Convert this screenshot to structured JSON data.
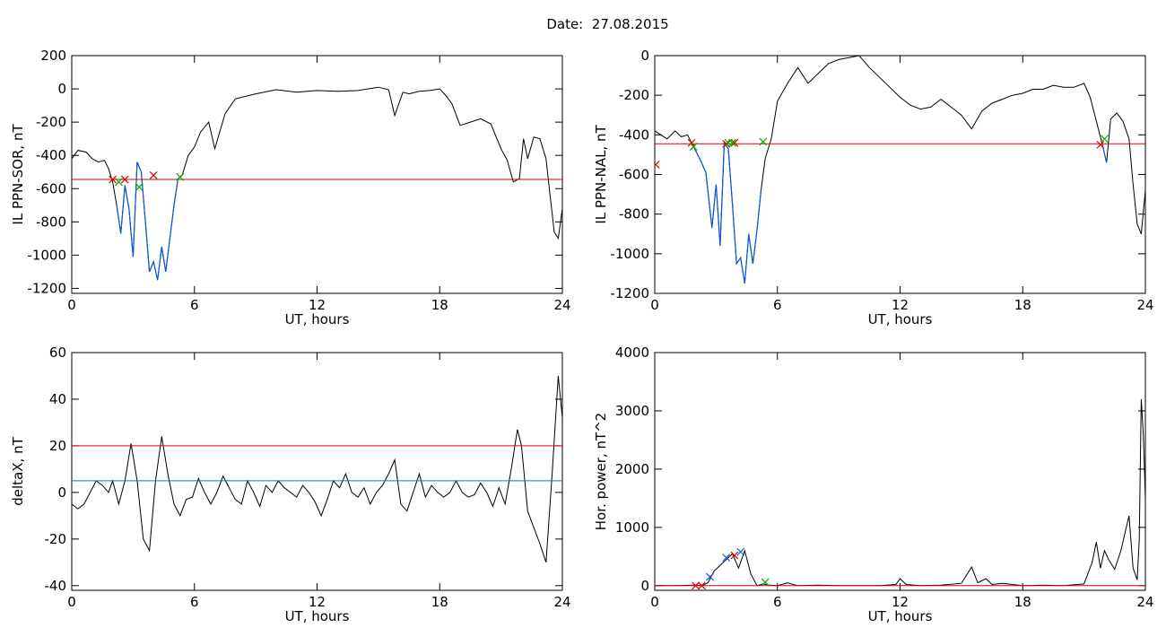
{
  "page": {
    "title": "Date:  27.08.2015"
  },
  "chart_data": [
    {
      "id": "sor",
      "type": "line",
      "xlabel": "UT, hours",
      "ylabel": "IL PPN-SOR, nT",
      "xlim": [
        0,
        24
      ],
      "ylim": [
        -1230,
        200
      ],
      "xticks": [
        0,
        6,
        12,
        18,
        24
      ],
      "yticks": [
        200,
        0,
        -200,
        -400,
        -600,
        -800,
        -1000,
        -1200
      ],
      "hlines": [
        {
          "value": -545,
          "color": "#e00000"
        }
      ],
      "highlight": {
        "color": "#0a58d8",
        "ranges": [
          [
            2.1,
            5.3
          ]
        ]
      },
      "markers": [
        {
          "x": 2.0,
          "y": -545,
          "color": "#e00000"
        },
        {
          "x": 2.6,
          "y": -545,
          "color": "#e00000"
        },
        {
          "x": 4.0,
          "y": -520,
          "color": "#e00000"
        },
        {
          "x": 2.3,
          "y": -560,
          "color": "#00aa00"
        },
        {
          "x": 3.3,
          "y": -590,
          "color": "#00aa00"
        },
        {
          "x": 5.3,
          "y": -530,
          "color": "#00aa00"
        }
      ],
      "series": [
        {
          "x": [
            0,
            0.3,
            0.7,
            1.0,
            1.3,
            1.6,
            1.8,
            2.0,
            2.2,
            2.4,
            2.6,
            2.8,
            3.0,
            3.2,
            3.4,
            3.6,
            3.8,
            4.0,
            4.2,
            4.4,
            4.6,
            4.8,
            5.0,
            5.2,
            5.4,
            5.7,
            6.0,
            6.3,
            6.7,
            7.0,
            7.5,
            8.0,
            9.0,
            10.0,
            11.0,
            12.0,
            13.0,
            14.0,
            15.0,
            15.5,
            15.8,
            16.2,
            16.5,
            17.0,
            17.5,
            18.0,
            18.3,
            18.6,
            19.0,
            19.5,
            20.0,
            20.5,
            21.0,
            21.3,
            21.6,
            21.9,
            22.1,
            22.3,
            22.6,
            22.9,
            23.2,
            23.4,
            23.6,
            23.8,
            24.0
          ],
          "y": [
            -420,
            -370,
            -380,
            -420,
            -440,
            -430,
            -480,
            -560,
            -700,
            -870,
            -580,
            -720,
            -1010,
            -440,
            -500,
            -800,
            -1100,
            -1040,
            -1150,
            -950,
            -1100,
            -900,
            -700,
            -540,
            -520,
            -400,
            -350,
            -260,
            -200,
            -360,
            -150,
            -60,
            -30,
            -5,
            -20,
            -10,
            -15,
            -10,
            10,
            -5,
            -160,
            -20,
            -30,
            -15,
            -10,
            0,
            -40,
            -90,
            -220,
            -200,
            -180,
            -210,
            -360,
            -430,
            -560,
            -540,
            -300,
            -420,
            -290,
            -300,
            -420,
            -640,
            -860,
            -900,
            -720
          ]
        }
      ]
    },
    {
      "id": "nal",
      "type": "line",
      "xlabel": "UT, hours",
      "ylabel": "IL PPN-NAL, nT",
      "xlim": [
        0,
        24
      ],
      "ylim": [
        -1200,
        0
      ],
      "xticks": [
        0,
        6,
        12,
        18,
        24
      ],
      "yticks": [
        0,
        -200,
        -400,
        -600,
        -800,
        -1000,
        -1200
      ],
      "hlines": [
        {
          "value": -445,
          "color": "#e00000"
        }
      ],
      "highlight": {
        "color": "#0a58d8",
        "ranges": [
          [
            1.8,
            5.3
          ],
          [
            21.8,
            22.1
          ]
        ]
      },
      "markers": [
        {
          "x": 0.05,
          "y": -550,
          "color": "#e00000"
        },
        {
          "x": 1.8,
          "y": -440,
          "color": "#e00000"
        },
        {
          "x": 3.5,
          "y": -445,
          "color": "#e00000"
        },
        {
          "x": 3.9,
          "y": -440,
          "color": "#e00000"
        },
        {
          "x": 21.8,
          "y": -450,
          "color": "#e00000"
        },
        {
          "x": 1.9,
          "y": -460,
          "color": "#00aa00"
        },
        {
          "x": 3.6,
          "y": -440,
          "color": "#00aa00"
        },
        {
          "x": 3.8,
          "y": -440,
          "color": "#00aa00"
        },
        {
          "x": 5.3,
          "y": -435,
          "color": "#00aa00"
        },
        {
          "x": 22.0,
          "y": -420,
          "color": "#00aa00"
        }
      ],
      "series": [
        {
          "x": [
            0,
            0.3,
            0.6,
            1.0,
            1.3,
            1.6,
            1.9,
            2.2,
            2.5,
            2.8,
            3.0,
            3.2,
            3.4,
            3.6,
            3.8,
            4.0,
            4.2,
            4.4,
            4.6,
            4.8,
            5.0,
            5.2,
            5.4,
            5.7,
            6.0,
            6.5,
            7.0,
            7.5,
            8.0,
            8.5,
            9.0,
            9.5,
            10.0,
            10.5,
            11.0,
            11.5,
            12.0,
            12.5,
            13.0,
            13.5,
            14.0,
            14.5,
            15.0,
            15.5,
            16.0,
            16.5,
            17.0,
            17.5,
            18.0,
            18.5,
            19.0,
            19.5,
            20.0,
            20.5,
            21.0,
            21.3,
            21.6,
            21.9,
            22.1,
            22.3,
            22.6,
            22.9,
            23.2,
            23.4,
            23.6,
            23.8,
            24.0
          ],
          "y": [
            -380,
            -400,
            -420,
            -380,
            -410,
            -400,
            -460,
            -520,
            -590,
            -870,
            -650,
            -960,
            -440,
            -470,
            -750,
            -1050,
            -1020,
            -1150,
            -900,
            -1050,
            -880,
            -680,
            -520,
            -420,
            -230,
            -140,
            -60,
            -140,
            -90,
            -40,
            -20,
            -10,
            0,
            -60,
            -110,
            -160,
            -210,
            -250,
            -270,
            -260,
            -220,
            -260,
            -300,
            -370,
            -280,
            -240,
            -220,
            -200,
            -190,
            -170,
            -170,
            -150,
            -160,
            -160,
            -140,
            -210,
            -330,
            -450,
            -540,
            -320,
            -290,
            -330,
            -420,
            -650,
            -850,
            -900,
            -680
          ]
        }
      ]
    },
    {
      "id": "deltax",
      "type": "line",
      "xlabel": "UT, hours",
      "ylabel": "deltaX, nT",
      "xlim": [
        0,
        24
      ],
      "ylim": [
        -42,
        60
      ],
      "xticks": [
        0,
        6,
        12,
        18,
        24
      ],
      "yticks": [
        60,
        40,
        20,
        0,
        -20,
        -40
      ],
      "hlines": [
        {
          "value": 20,
          "color": "#e00000"
        },
        {
          "value": 5,
          "color": "#008888"
        }
      ],
      "highlight": {
        "color": "#0a58d8",
        "ranges": []
      },
      "markers": [],
      "series": [
        {
          "x": [
            0,
            0.3,
            0.6,
            0.9,
            1.2,
            1.5,
            1.8,
            2.0,
            2.3,
            2.6,
            2.9,
            3.2,
            3.5,
            3.8,
            4.1,
            4.4,
            4.7,
            5.0,
            5.3,
            5.6,
            5.9,
            6.2,
            6.5,
            6.8,
            7.1,
            7.4,
            7.7,
            8.0,
            8.3,
            8.6,
            8.9,
            9.2,
            9.5,
            9.8,
            10.1,
            10.4,
            10.7,
            11.0,
            11.3,
            11.6,
            11.9,
            12.2,
            12.5,
            12.8,
            13.1,
            13.4,
            13.7,
            14.0,
            14.3,
            14.6,
            14.9,
            15.2,
            15.5,
            15.8,
            16.1,
            16.4,
            16.7,
            17.0,
            17.3,
            17.6,
            17.9,
            18.2,
            18.5,
            18.8,
            19.1,
            19.4,
            19.7,
            20.0,
            20.3,
            20.6,
            20.9,
            21.2,
            21.5,
            21.8,
            22.0,
            22.3,
            22.6,
            22.9,
            23.2,
            23.5,
            23.8,
            24.0
          ],
          "y": [
            -5,
            -7,
            -5,
            0,
            5,
            3,
            0,
            5,
            -5,
            5,
            21,
            5,
            -20,
            -25,
            5,
            24,
            8,
            -5,
            -10,
            -3,
            -2,
            6,
            0,
            -5,
            0,
            7,
            2,
            -3,
            -5,
            5,
            0,
            -6,
            3,
            0,
            5,
            2,
            0,
            -2,
            3,
            0,
            -4,
            -10,
            -3,
            5,
            2,
            8,
            0,
            -2,
            2,
            -5,
            0,
            3,
            8,
            14,
            -5,
            -8,
            0,
            8,
            -2,
            3,
            0,
            -2,
            0,
            5,
            0,
            -2,
            -1,
            4,
            0,
            -6,
            2,
            -5,
            10,
            27,
            20,
            -8,
            -15,
            -22,
            -30,
            8,
            50,
            32
          ]
        }
      ]
    },
    {
      "id": "power",
      "type": "line",
      "xlabel": "UT, hours",
      "ylabel": "Hor. power, nT^2",
      "xlim": [
        0,
        24
      ],
      "ylim": [
        -80,
        4000
      ],
      "xticks": [
        0,
        6,
        12,
        18,
        24
      ],
      "yticks": [
        4000,
        3000,
        2000,
        1000,
        0
      ],
      "ytick_labels": [
        "4000",
        "3000",
        "2000",
        "1000",
        "0"
      ],
      "hlines": [
        {
          "value": 0,
          "color": "#e00000"
        }
      ],
      "highlight": {
        "color": "#0a58d8",
        "ranges": []
      },
      "markers": [
        {
          "x": 2.0,
          "y": 0,
          "color": "#e00000"
        },
        {
          "x": 2.3,
          "y": 0,
          "color": "#e00000"
        },
        {
          "x": 3.9,
          "y": 520,
          "color": "#e00000"
        },
        {
          "x": 2.7,
          "y": 150,
          "color": "#0a58d8"
        },
        {
          "x": 3.5,
          "y": 480,
          "color": "#0a58d8"
        },
        {
          "x": 4.2,
          "y": 580,
          "color": "#0a58d8"
        },
        {
          "x": 5.4,
          "y": 60,
          "color": "#00aa00"
        }
      ],
      "series": [
        {
          "x": [
            0,
            1.0,
            2.0,
            2.3,
            2.6,
            2.9,
            3.2,
            3.5,
            3.8,
            4.1,
            4.4,
            4.7,
            5.0,
            5.3,
            5.6,
            6.0,
            6.5,
            7.0,
            8.0,
            9.0,
            10.0,
            11.0,
            11.8,
            12.0,
            12.3,
            13.0,
            14.0,
            15.0,
            15.5,
            15.8,
            16.2,
            16.5,
            17.0,
            18.0,
            19.0,
            20.0,
            21.0,
            21.4,
            21.6,
            21.8,
            22.0,
            22.2,
            22.5,
            22.8,
            23.0,
            23.2,
            23.4,
            23.6,
            23.7,
            23.8,
            23.9,
            24.0
          ],
          "y": [
            0,
            0,
            10,
            0,
            50,
            250,
            350,
            450,
            550,
            300,
            600,
            200,
            0,
            30,
            10,
            0,
            50,
            0,
            10,
            0,
            0,
            0,
            20,
            120,
            20,
            0,
            10,
            40,
            320,
            50,
            120,
            20,
            40,
            0,
            10,
            0,
            30,
            400,
            750,
            300,
            600,
            450,
            280,
            600,
            900,
            1200,
            300,
            100,
            800,
            3200,
            2600,
            1500
          ]
        }
      ]
    }
  ]
}
